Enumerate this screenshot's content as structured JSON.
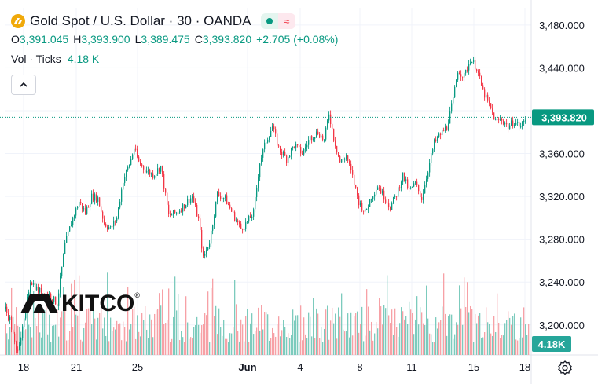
{
  "header": {
    "title": "Gold Spot / U.S. Dollar · 30 · OANDA",
    "ohlc": [
      {
        "k": "O",
        "v": "3,391.045"
      },
      {
        "k": "H",
        "v": "3,393.900"
      },
      {
        "k": "L",
        "v": "3,389.475"
      },
      {
        "k": "C",
        "v": "3,393.820"
      }
    ],
    "change": "+2.705 (+0.08%)",
    "volume_label": "Vol · Ticks",
    "volume_value": "4.18 K"
  },
  "watermark": {
    "text": "KITCO",
    "reg": "®"
  },
  "colors": {
    "up": "#089981",
    "down": "#f23645",
    "up_vol": "#7ccbbd",
    "down_vol": "#f7a1a6",
    "axis_text": "#131722"
  },
  "chart_data": {
    "type": "candlestick",
    "y_ticks": [
      "3,480.000",
      "3,440.000",
      "3,400.000",
      "3,360.000",
      "3,320.000",
      "3,280.000",
      "3,240.000",
      "3,200.000"
    ],
    "y_tick_values": [
      3480,
      3440,
      3400,
      3360,
      3320,
      3280,
      3240,
      3200
    ],
    "ylim": [
      3172,
      3496
    ],
    "x_ticks": [
      "18",
      "21",
      "25",
      "Jun",
      "4",
      "8",
      "11",
      "15",
      "18"
    ],
    "last_price": 3393.82,
    "last_price_label": "3,393.820",
    "volume_badge": "4.18K",
    "anchors": [
      [
        0,
        3225
      ],
      [
        12,
        3205
      ],
      [
        20,
        3175
      ],
      [
        28,
        3195
      ],
      [
        38,
        3242
      ],
      [
        48,
        3232
      ],
      [
        62,
        3228
      ],
      [
        72,
        3220
      ],
      [
        82,
        3275
      ],
      [
        92,
        3300
      ],
      [
        100,
        3315
      ],
      [
        108,
        3305
      ],
      [
        116,
        3320
      ],
      [
        124,
        3318
      ],
      [
        132,
        3295
      ],
      [
        140,
        3290
      ],
      [
        148,
        3300
      ],
      [
        156,
        3335
      ],
      [
        164,
        3350
      ],
      [
        170,
        3365
      ],
      [
        176,
        3352
      ],
      [
        184,
        3345
      ],
      [
        194,
        3340
      ],
      [
        204,
        3348
      ],
      [
        214,
        3302
      ],
      [
        224,
        3305
      ],
      [
        234,
        3312
      ],
      [
        244,
        3320
      ],
      [
        252,
        3298
      ],
      [
        258,
        3262
      ],
      [
        266,
        3278
      ],
      [
        276,
        3322
      ],
      [
        286,
        3318
      ],
      [
        296,
        3303
      ],
      [
        306,
        3290
      ],
      [
        314,
        3296
      ],
      [
        322,
        3305
      ],
      [
        330,
        3352
      ],
      [
        338,
        3372
      ],
      [
        346,
        3385
      ],
      [
        354,
        3365
      ],
      [
        364,
        3355
      ],
      [
        374,
        3368
      ],
      [
        384,
        3360
      ],
      [
        394,
        3375
      ],
      [
        404,
        3380
      ],
      [
        412,
        3372
      ],
      [
        418,
        3398
      ],
      [
        424,
        3375
      ],
      [
        432,
        3352
      ],
      [
        440,
        3358
      ],
      [
        448,
        3338
      ],
      [
        456,
        3315
      ],
      [
        464,
        3305
      ],
      [
        472,
        3320
      ],
      [
        480,
        3330
      ],
      [
        488,
        3320
      ],
      [
        496,
        3310
      ],
      [
        504,
        3322
      ],
      [
        512,
        3340
      ],
      [
        520,
        3325
      ],
      [
        528,
        3332
      ],
      [
        536,
        3318
      ],
      [
        544,
        3345
      ],
      [
        552,
        3370
      ],
      [
        560,
        3378
      ],
      [
        568,
        3385
      ],
      [
        576,
        3410
      ],
      [
        582,
        3438
      ],
      [
        590,
        3432
      ],
      [
        598,
        3448
      ],
      [
        606,
        3440
      ],
      [
        614,
        3418
      ],
      [
        622,
        3405
      ],
      [
        630,
        3390
      ],
      [
        638,
        3392
      ],
      [
        646,
        3385
      ],
      [
        654,
        3390
      ],
      [
        662,
        3385
      ],
      [
        669,
        3393.82
      ]
    ],
    "volume_range": [
      0,
      1
    ]
  }
}
